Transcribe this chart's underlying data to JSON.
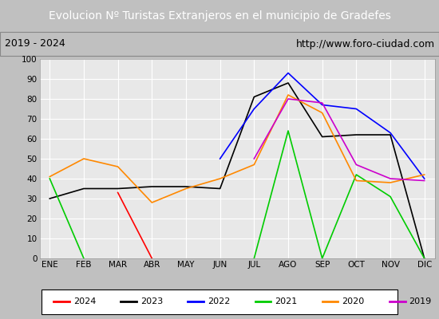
{
  "title": "Evolucion Nº Turistas Extranjeros en el municipio de Gradefes",
  "subtitle_left": "2019 - 2024",
  "subtitle_right": "http://www.foro-ciudad.com",
  "months": [
    "ENE",
    "FEB",
    "MAR",
    "ABR",
    "MAY",
    "JUN",
    "JUL",
    "AGO",
    "SEP",
    "OCT",
    "NOV",
    "DIC"
  ],
  "ylim": [
    0,
    100
  ],
  "yticks": [
    0,
    10,
    20,
    30,
    40,
    50,
    60,
    70,
    80,
    90,
    100
  ],
  "series": {
    "2024": {
      "color": "#ff0000",
      "values": [
        null,
        null,
        33,
        0,
        null,
        null,
        null,
        null,
        null,
        null,
        null,
        null
      ]
    },
    "2023": {
      "color": "#000000",
      "values": [
        30,
        35,
        35,
        36,
        36,
        35,
        81,
        88,
        61,
        62,
        62,
        0
      ]
    },
    "2022": {
      "color": "#0000ff",
      "values": [
        null,
        null,
        null,
        null,
        null,
        50,
        75,
        93,
        77,
        75,
        63,
        40
      ]
    },
    "2021": {
      "color": "#00cc00",
      "values": [
        40,
        0,
        null,
        0,
        null,
        null,
        0,
        64,
        0,
        42,
        31,
        0
      ]
    },
    "2020": {
      "color": "#ff8800",
      "values": [
        41,
        50,
        46,
        28,
        35,
        40,
        47,
        82,
        73,
        39,
        38,
        42
      ]
    },
    "2019": {
      "color": "#cc00cc",
      "values": [
        null,
        null,
        null,
        null,
        null,
        null,
        50,
        80,
        78,
        47,
        40,
        39
      ]
    }
  },
  "title_bg_color": "#4472c4",
  "title_text_color": "#ffffff",
  "plot_bg_color": "#e8e8e8",
  "grid_color": "#ffffff",
  "subtitle_box_facecolor": "#ffffff",
  "fig_bg_color": "#c0c0c0",
  "legend_order": [
    "2024",
    "2023",
    "2022",
    "2021",
    "2020",
    "2019"
  ]
}
